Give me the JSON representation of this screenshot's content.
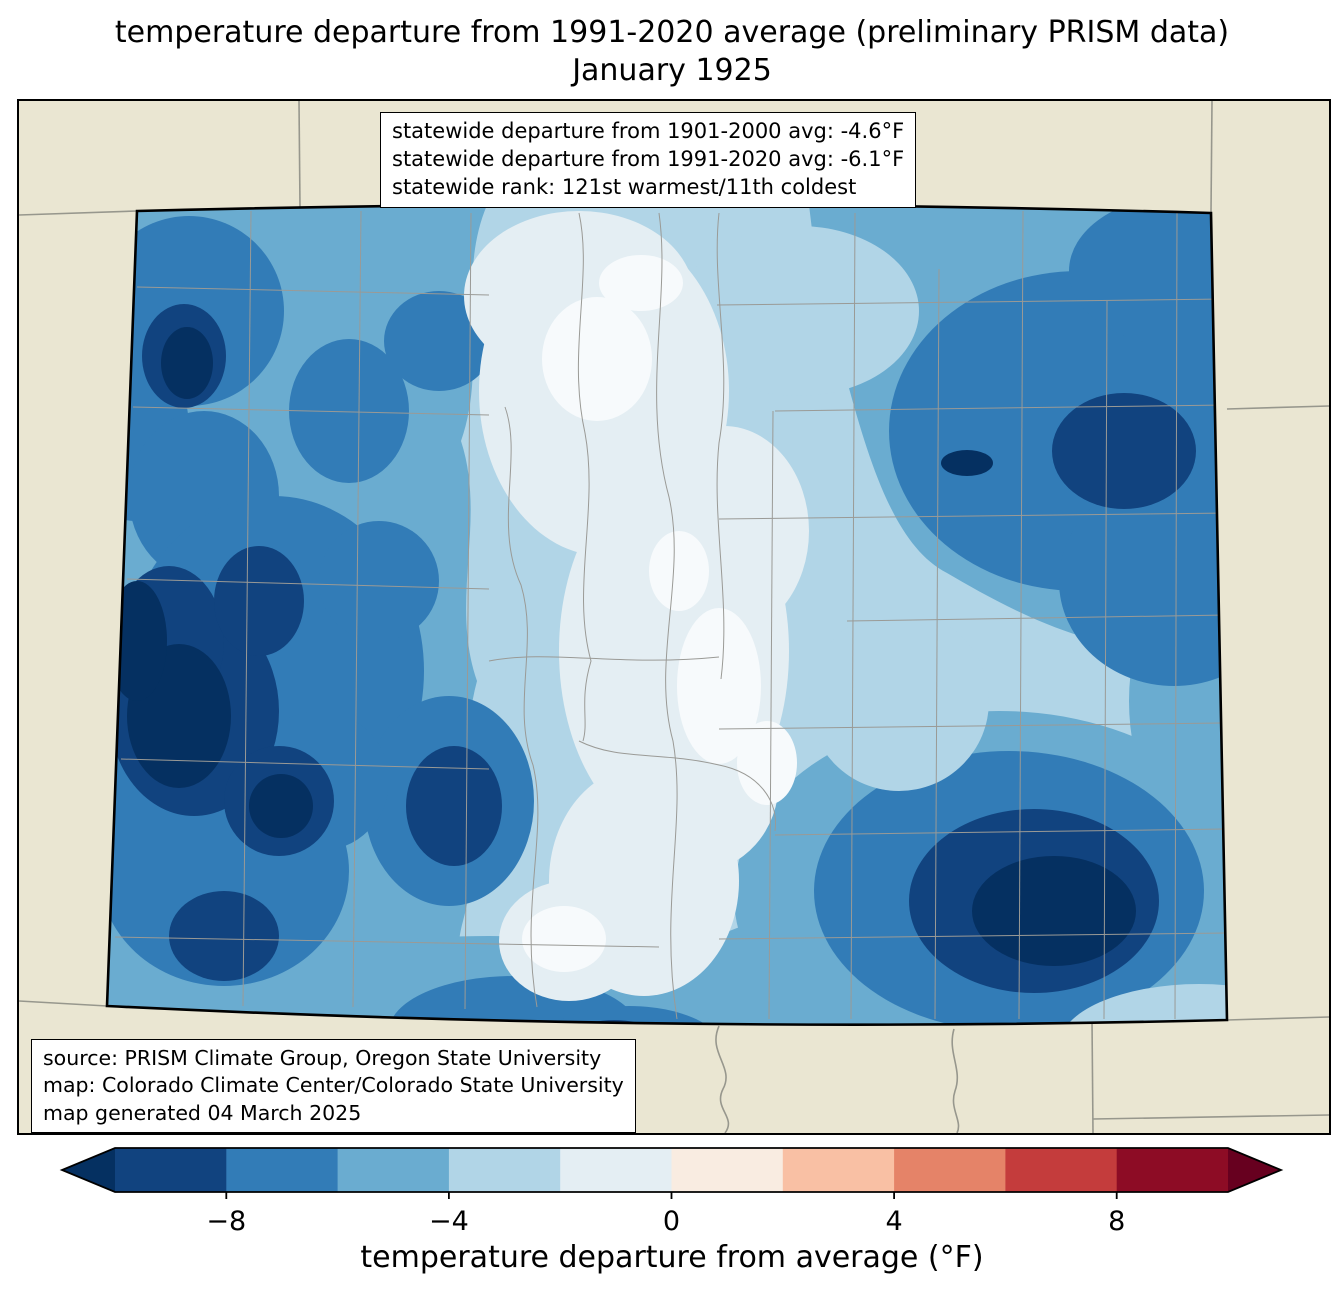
{
  "title": {
    "line1": "temperature departure from 1991-2020 average (preliminary PRISM data)",
    "line2": "January 1925"
  },
  "stats_box": {
    "lines": [
      "statewide departure from 1901-2000 avg: -4.6°F",
      "statewide departure from 1991-2020 avg: -6.1°F",
      "statewide rank: 121st warmest/11th coldest"
    ]
  },
  "source_box": {
    "lines": [
      "source: PRISM Climate Group, Oregon State University",
      "map: Colorado Climate Center/Colorado State University",
      "map generated 04 March 2025"
    ]
  },
  "colorbar": {
    "label": "temperature departure from average (°F)",
    "tick_labels": [
      "−8",
      "−4",
      "0",
      "4",
      "8"
    ],
    "tick_values": [
      -8,
      -4,
      0,
      4,
      8
    ],
    "vmin": -10,
    "vmax": 10,
    "band_step": 2,
    "band_colors": [
      "#11437f",
      "#327cb7",
      "#6aacd0",
      "#b1d5e7",
      "#e4eef3",
      "#f9ece1",
      "#f9c0a4",
      "#e58368",
      "#c43c3c",
      "#8d0c25"
    ],
    "under_color": "#053061",
    "over_color": "#67001f"
  },
  "palette": {
    "land": "#eae6d2",
    "state_line_gray": "#97978d",
    "county_gray": "#9a9a96",
    "state_border": "#000000",
    "band_lt_m10": "#053061",
    "band_m10_m8": "#11437f",
    "band_m8_m6": "#327cb7",
    "band_m6_m4": "#6aacd0",
    "band_m4_m2": "#b1d5e7",
    "band_m2_0": "#e4eef3",
    "near_white": "#f7fafc"
  }
}
